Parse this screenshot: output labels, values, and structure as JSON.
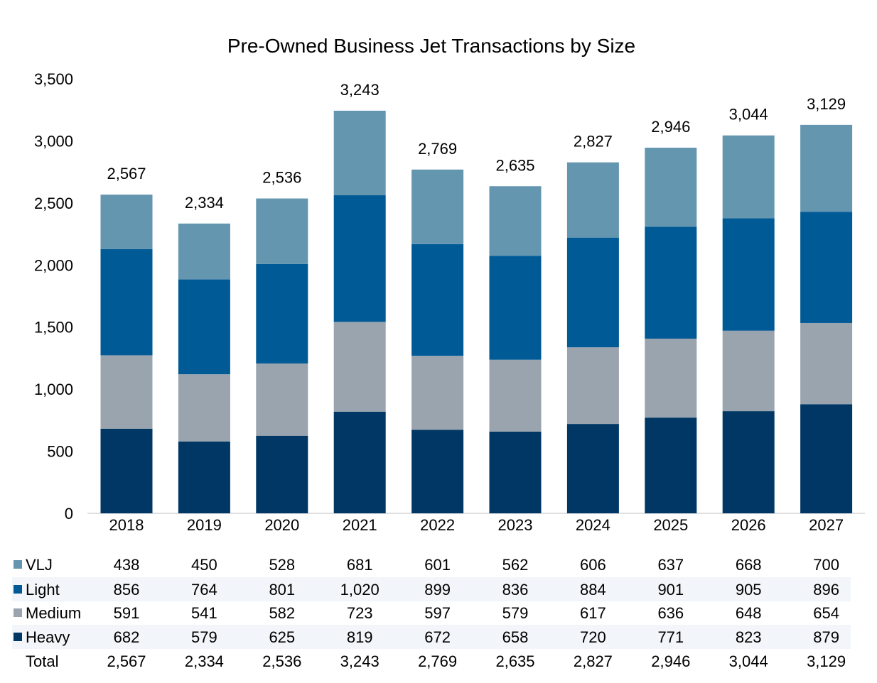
{
  "chart_data": {
    "type": "bar",
    "stacked": true,
    "title": "Pre-Owned Business Jet Transactions by Size",
    "categories": [
      "2018",
      "2019",
      "2020",
      "2021",
      "2022",
      "2023",
      "2024",
      "2025",
      "2026",
      "2027"
    ],
    "ylim": [
      0,
      3500
    ],
    "yticks": [
      0,
      500,
      1000,
      1500,
      2000,
      2500,
      3000,
      3500
    ],
    "ytick_labels": [
      "0",
      "500",
      "1,000",
      "1,500",
      "2,000",
      "2,500",
      "3,000",
      "3,500"
    ],
    "grid": false,
    "legend_placement": "bottom data table",
    "series": [
      {
        "name": "Heavy",
        "color": "#003764",
        "values": [
          682,
          579,
          625,
          819,
          672,
          658,
          720,
          771,
          823,
          879
        ]
      },
      {
        "name": "Medium",
        "color": "#9aa4ae",
        "values": [
          591,
          541,
          582,
          723,
          597,
          579,
          617,
          636,
          648,
          654
        ]
      },
      {
        "name": "Light",
        "color": "#005a96",
        "values": [
          856,
          764,
          801,
          1020,
          899,
          836,
          884,
          901,
          905,
          896
        ]
      },
      {
        "name": "VLJ",
        "color": "#6496b0",
        "values": [
          438,
          450,
          528,
          681,
          601,
          562,
          606,
          637,
          668,
          700
        ]
      }
    ],
    "totals_label": "Total",
    "totals": [
      2567,
      2334,
      2536,
      3243,
      2769,
      2635,
      2827,
      2946,
      3044,
      3129
    ],
    "table_row_order": [
      "VLJ",
      "Light",
      "Medium",
      "Heavy"
    ],
    "table_band_color": "#f2f5f9"
  }
}
